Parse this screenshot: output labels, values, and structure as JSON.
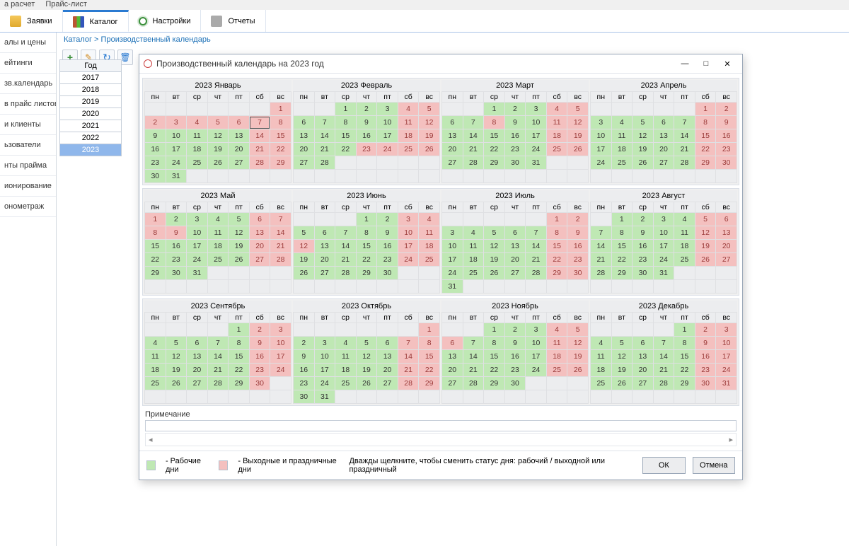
{
  "topbar": {
    "t1": "а расчет",
    "t2": "Прайс-лист"
  },
  "tabs": [
    {
      "label": "Заявки",
      "icon": "i-folder",
      "active": false
    },
    {
      "label": "Каталог",
      "icon": "i-books",
      "active": true
    },
    {
      "label": "Настройки",
      "icon": "i-gear",
      "active": false
    },
    {
      "label": "Отчеты",
      "icon": "i-print",
      "active": false
    }
  ],
  "breadcrumb": {
    "root": "Каталог",
    "sep": " > ",
    "leaf": "Производственный календарь"
  },
  "toolbar_icons": [
    "plus",
    "pen",
    "ref",
    "trash"
  ],
  "sidebar_items": [
    "алы и цены",
    "ейтинги",
    "зв.календарь",
    "в прайс листов",
    "и клиенты",
    "ьзователи",
    "нты прайма",
    "ионирование",
    "онометраж"
  ],
  "years": {
    "header": "Год",
    "list": [
      2017,
      2018,
      2019,
      2020,
      2021,
      2022,
      2023
    ],
    "selected": 2023
  },
  "dialog_title": "Производственный календарь на 2023 год",
  "dow": [
    "пн",
    "вт",
    "ср",
    "чт",
    "пт",
    "сб",
    "вс"
  ],
  "month_titles": [
    "2023 Январь",
    "2023 Февраль",
    "2023 Март",
    "2023 Апрель",
    "2023 Май",
    "2023 Июнь",
    "2023 Июль",
    "2023 Август",
    "2023 Сентябрь",
    "2023 Октябрь",
    "2023 Ноябрь",
    "2023 Декабрь"
  ],
  "months": [
    {
      "start": 6,
      "days": 31,
      "off": [
        1,
        2,
        3,
        4,
        5,
        6,
        7,
        8,
        14,
        15,
        21,
        22,
        28,
        29
      ],
      "today": 7
    },
    {
      "start": 2,
      "days": 28,
      "off": [
        4,
        5,
        11,
        12,
        18,
        19,
        23,
        24,
        25,
        26
      ]
    },
    {
      "start": 2,
      "days": 31,
      "off": [
        4,
        5,
        8,
        11,
        12,
        18,
        19,
        25,
        26
      ]
    },
    {
      "start": 5,
      "days": 30,
      "off": [
        1,
        2,
        8,
        9,
        15,
        16,
        22,
        23,
        29,
        30
      ]
    },
    {
      "start": 0,
      "days": 31,
      "off": [
        1,
        6,
        7,
        8,
        9,
        13,
        14,
        20,
        21,
        27,
        28
      ]
    },
    {
      "start": 3,
      "days": 30,
      "off": [
        3,
        4,
        10,
        11,
        12,
        17,
        18,
        24,
        25
      ]
    },
    {
      "start": 5,
      "days": 31,
      "off": [
        1,
        2,
        8,
        9,
        15,
        16,
        22,
        23,
        29,
        30
      ]
    },
    {
      "start": 1,
      "days": 31,
      "off": [
        5,
        6,
        12,
        13,
        19,
        20,
        26,
        27
      ]
    },
    {
      "start": 4,
      "days": 30,
      "off": [
        2,
        3,
        9,
        10,
        16,
        17,
        23,
        24,
        30
      ]
    },
    {
      "start": 6,
      "days": 31,
      "off": [
        1,
        7,
        8,
        14,
        15,
        21,
        22,
        28,
        29
      ]
    },
    {
      "start": 2,
      "days": 30,
      "off": [
        4,
        5,
        6,
        11,
        12,
        18,
        19,
        25,
        26
      ]
    },
    {
      "start": 4,
      "days": 31,
      "off": [
        2,
        3,
        9,
        10,
        16,
        17,
        23,
        24,
        30,
        31
      ]
    }
  ],
  "note_label": "Примечание",
  "legend": {
    "work": "- Рабочие дни",
    "off": "- Выходные и праздничные дни",
    "hint": "Дважды щелкните, чтобы сменить статус дня: рабочий / выходной или праздничный"
  },
  "buttons": {
    "ok": "ОК",
    "cancel": "Отмена"
  },
  "colors": {
    "work": "#bfe8b4",
    "off": "#f4c0bf",
    "grid_bg": "#ecedef",
    "accent": "#2a7ad1"
  }
}
